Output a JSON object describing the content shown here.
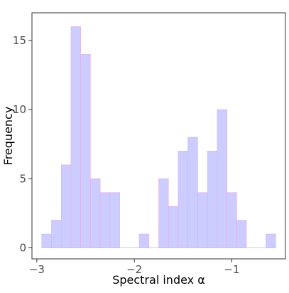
{
  "chart_data": {
    "type": "bar",
    "subtype": "histogram",
    "xlabel": "Spectral index α",
    "ylabel": "Frequency",
    "xlim": [
      -3.05,
      -0.45
    ],
    "ylim": [
      -0.8,
      17
    ],
    "grid": false,
    "bin_width": 0.1,
    "xticks": [
      {
        "value": -3,
        "label": "−3"
      },
      {
        "value": -2,
        "label": "−2"
      },
      {
        "value": -1,
        "label": "−1"
      }
    ],
    "yticks": [
      {
        "value": 0,
        "label": "0"
      },
      {
        "value": 5,
        "label": "5"
      },
      {
        "value": 10,
        "label": "10"
      },
      {
        "value": 15,
        "label": "15"
      }
    ],
    "bins": [
      {
        "x0": -2.95,
        "count": 1
      },
      {
        "x0": -2.85,
        "count": 2
      },
      {
        "x0": -2.75,
        "count": 6
      },
      {
        "x0": -2.65,
        "count": 16
      },
      {
        "x0": -2.55,
        "count": 14
      },
      {
        "x0": -2.45,
        "count": 5
      },
      {
        "x0": -2.35,
        "count": 4
      },
      {
        "x0": -2.25,
        "count": 4
      },
      {
        "x0": -2.15,
        "count": 0
      },
      {
        "x0": -2.05,
        "count": 0
      },
      {
        "x0": -1.95,
        "count": 1
      },
      {
        "x0": -1.85,
        "count": 0
      },
      {
        "x0": -1.75,
        "count": 5
      },
      {
        "x0": -1.65,
        "count": 3
      },
      {
        "x0": -1.55,
        "count": 7
      },
      {
        "x0": -1.45,
        "count": 8
      },
      {
        "x0": -1.35,
        "count": 4
      },
      {
        "x0": -1.25,
        "count": 7
      },
      {
        "x0": -1.15,
        "count": 10
      },
      {
        "x0": -1.05,
        "count": 4
      },
      {
        "x0": -0.95,
        "count": 2
      },
      {
        "x0": -0.85,
        "count": 0
      },
      {
        "x0": -0.75,
        "count": 0
      },
      {
        "x0": -0.65,
        "count": 1
      }
    ],
    "colors": {
      "bar_fill": "#ccccff",
      "bar_outline": "#e0b0e8",
      "frame": "#333333",
      "tick_text": "#4d4d4d"
    }
  }
}
